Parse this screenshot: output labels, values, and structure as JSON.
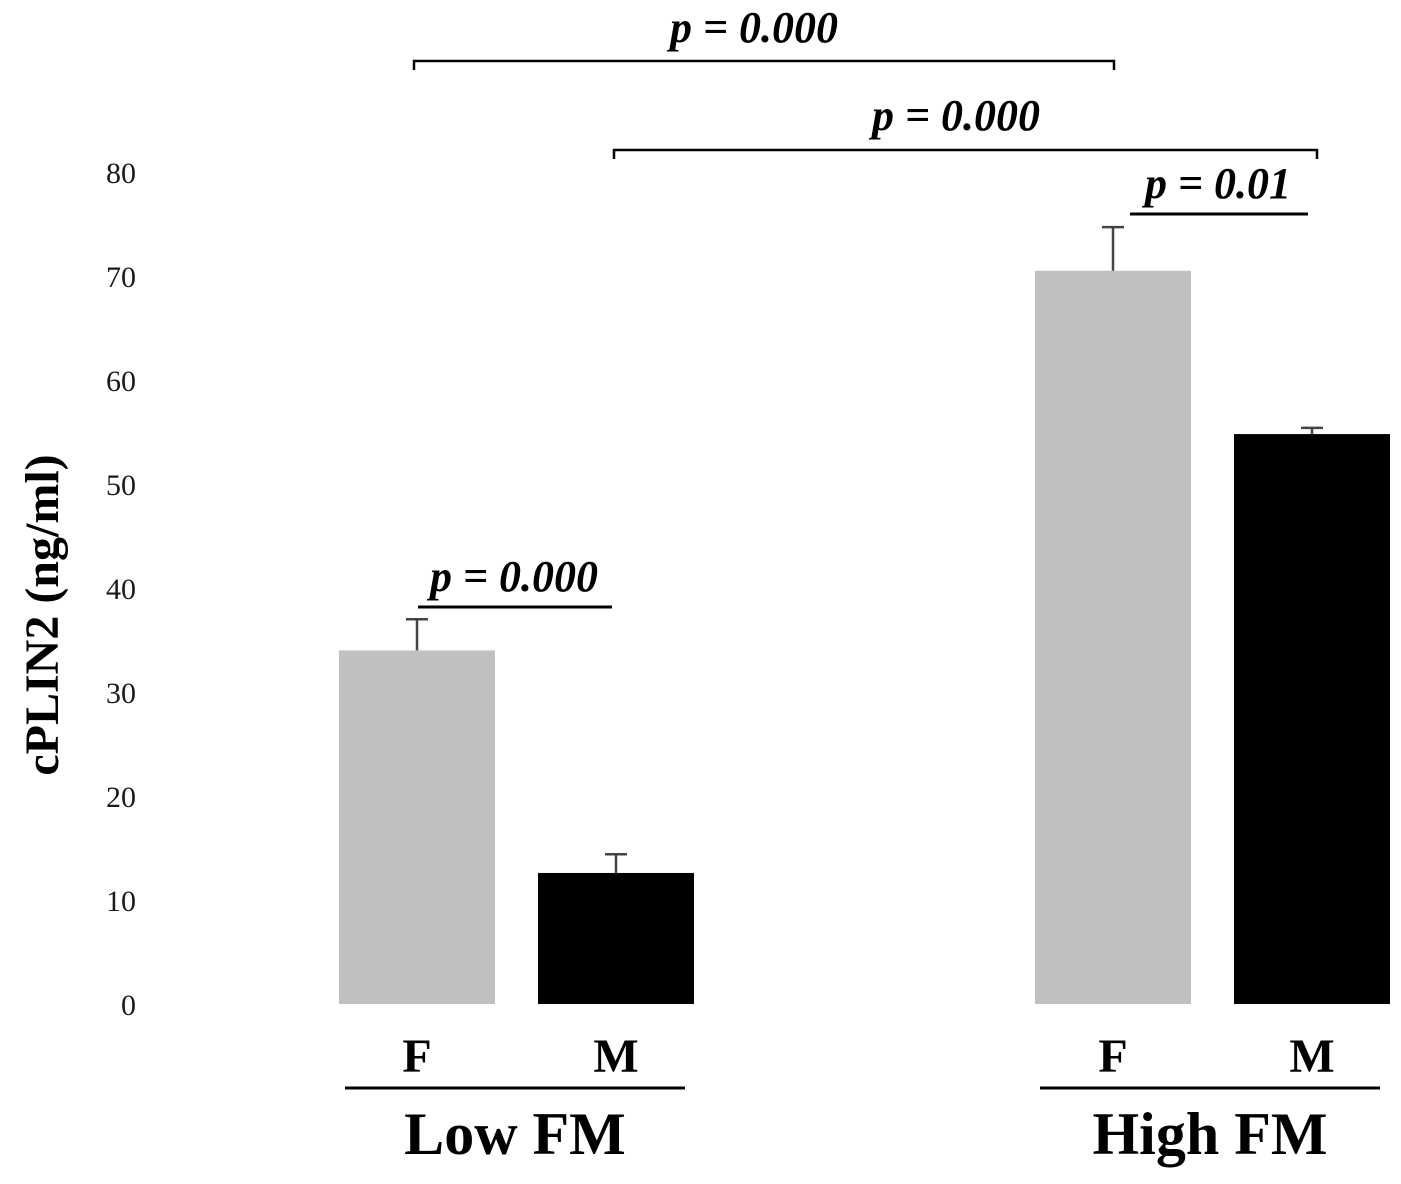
{
  "chart_data": {
    "type": "bar",
    "title": "",
    "xlabel": "",
    "ylabel": "cPLIN2 (ng/ml)",
    "ylim": [
      0,
      80
    ],
    "yticks": [
      0,
      10,
      20,
      30,
      40,
      50,
      60,
      70,
      80
    ],
    "grid": false,
    "colors": {
      "F": "#c0c0c0",
      "M": "#000000"
    },
    "groups": [
      {
        "label": "Low FM",
        "bars": [
          {
            "category": "F",
            "value": 34,
            "error": 3,
            "color": "#c0c0c0"
          },
          {
            "category": "M",
            "value": 12.6,
            "error": 1.8,
            "color": "#000000"
          }
        ]
      },
      {
        "label": "High FM",
        "bars": [
          {
            "category": "F",
            "value": 70.5,
            "error": 4.2,
            "color": "#c0c0c0"
          },
          {
            "category": "M",
            "value": 54.8,
            "error": 0.6,
            "color": "#000000"
          }
        ]
      }
    ],
    "annotations": [
      {
        "label": "p = 0.000",
        "from": [
          0,
          0
        ],
        "to": [
          1,
          0
        ],
        "style": "bracket"
      },
      {
        "label": "p = 0.000",
        "from": [
          0,
          1
        ],
        "to": [
          1,
          1
        ],
        "style": "bracket"
      },
      {
        "label": "p = 0.01",
        "from": [
          1,
          0
        ],
        "to": [
          1,
          1
        ],
        "style": "line"
      },
      {
        "label": "p = 0.000",
        "from": [
          0,
          0
        ],
        "to": [
          0,
          1
        ],
        "style": "line"
      }
    ]
  }
}
